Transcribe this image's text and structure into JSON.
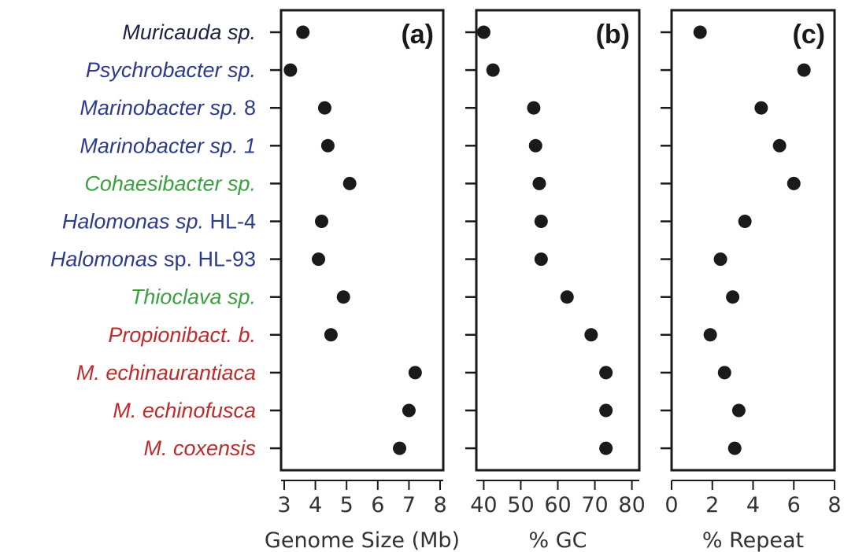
{
  "chart_data": {
    "type": "scatter",
    "colors": {
      "dark": "#1c2340",
      "blue": "#2e3a8c",
      "green": "#3aa040",
      "red": "#bf2a2a",
      "point": "#1a1a1a",
      "axis": "#1a1a1a"
    },
    "species": [
      {
        "parts": [
          {
            "text": "Muricauda sp.",
            "italic": true
          }
        ],
        "color": "dark"
      },
      {
        "parts": [
          {
            "text": "Psychrobacter sp.",
            "italic": true
          }
        ],
        "color": "blue"
      },
      {
        "parts": [
          {
            "text": "Marinobacter sp.",
            "italic": true
          },
          {
            "text": " 8",
            "italic": false
          }
        ],
        "color": "blue"
      },
      {
        "parts": [
          {
            "text": "Marinobacter sp. 1",
            "italic": true
          }
        ],
        "color": "blue"
      },
      {
        "parts": [
          {
            "text": "Cohaesibacter sp.",
            "italic": true
          }
        ],
        "color": "green"
      },
      {
        "parts": [
          {
            "text": "Halomonas sp.",
            "italic": true
          },
          {
            "text": " HL-4",
            "italic": false
          }
        ],
        "color": "blue"
      },
      {
        "parts": [
          {
            "text": "Halomonas",
            "italic": true
          },
          {
            "text": " sp. HL-93",
            "italic": false
          }
        ],
        "color": "blue"
      },
      {
        "parts": [
          {
            "text": "Thioclava sp.",
            "italic": true
          }
        ],
        "color": "green"
      },
      {
        "parts": [
          {
            "text": "Propionibact. b.",
            "italic": true
          }
        ],
        "color": "red"
      },
      {
        "parts": [
          {
            "text": "M. echinaurantiaca",
            "italic": true
          }
        ],
        "color": "red"
      },
      {
        "parts": [
          {
            "text": "M. echinofusca",
            "italic": true
          }
        ],
        "color": "red"
      },
      {
        "parts": [
          {
            "text": "M. coxensis",
            "italic": true
          }
        ],
        "color": "red"
      }
    ],
    "panels": [
      {
        "tag": "(a)",
        "xlabel": "Genome Size (Mb)",
        "xlim": [
          2.9,
          8.1
        ],
        "ticks": [
          3,
          4,
          5,
          6,
          7,
          8
        ],
        "values": [
          3.6,
          3.2,
          4.3,
          4.4,
          5.1,
          4.2,
          4.1,
          4.9,
          4.5,
          7.2,
          7.0,
          6.7
        ]
      },
      {
        "tag": "(b)",
        "xlabel": "% GC",
        "xlim": [
          38,
          82
        ],
        "ticks": [
          40,
          50,
          60,
          70,
          80
        ],
        "values": [
          40.0,
          42.5,
          53.5,
          54.0,
          55.0,
          55.5,
          55.5,
          62.5,
          69.0,
          73.0,
          73.0,
          73.0
        ]
      },
      {
        "tag": "(c)",
        "xlabel": "% Repeat",
        "xlim": [
          0,
          8
        ],
        "ticks": [
          0,
          2,
          4,
          6,
          8
        ],
        "values": [
          1.4,
          6.5,
          4.4,
          5.3,
          6.0,
          3.6,
          2.4,
          3.0,
          1.9,
          2.6,
          3.3,
          3.1
        ]
      }
    ]
  }
}
